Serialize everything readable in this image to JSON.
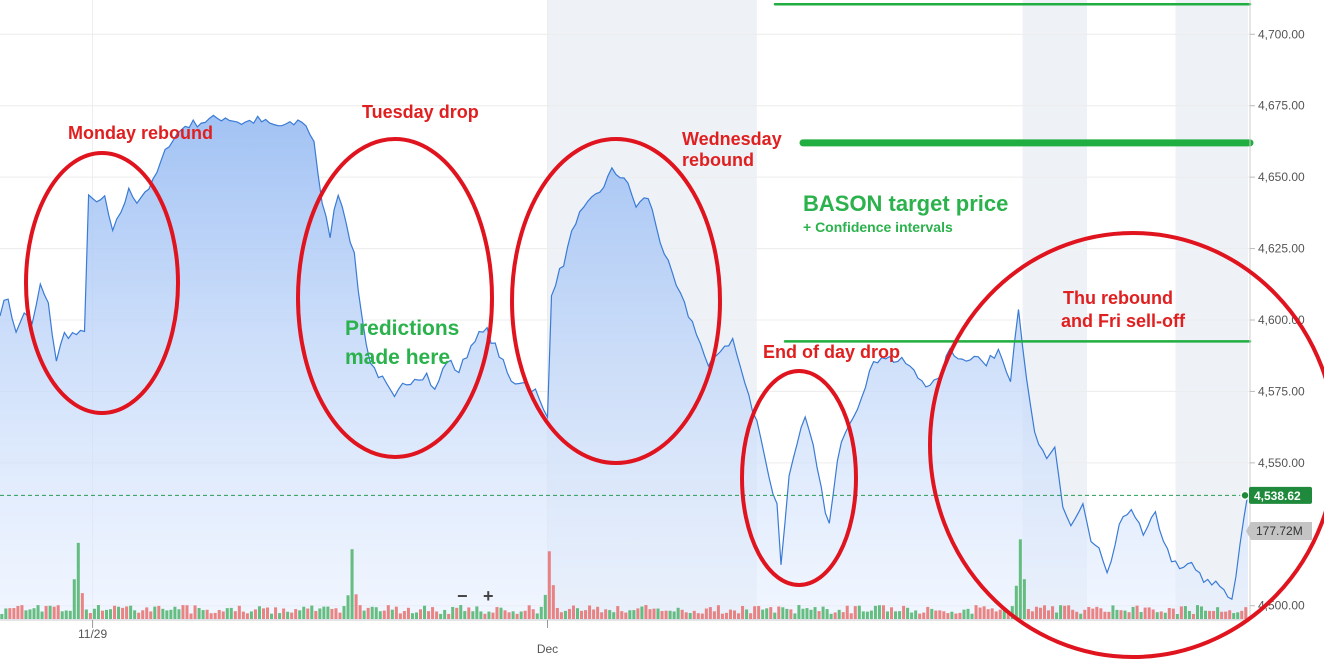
{
  "chart_data": {
    "type": "area",
    "y_ticks": [
      "4,700.00",
      "4,675.00",
      "4,650.00",
      "4,625.00",
      "4,600.00",
      "4,575.00",
      "4,550.00",
      "4,500.00"
    ],
    "y_tick_values": [
      4700,
      4675,
      4650,
      4625,
      4600,
      4575,
      4550,
      4500
    ],
    "ylim": [
      4495,
      4712
    ],
    "x_labels": [
      "11/29",
      "Dec"
    ],
    "x_label_index": [
      23,
      136
    ],
    "n_points": 310,
    "price_anchors": [
      [
        0,
        4603
      ],
      [
        2,
        4608
      ],
      [
        4,
        4595
      ],
      [
        6,
        4603
      ],
      [
        8,
        4598
      ],
      [
        10,
        4612
      ],
      [
        12,
        4605
      ],
      [
        14,
        4586
      ],
      [
        16,
        4595
      ],
      [
        19,
        4595
      ],
      [
        21,
        4595
      ],
      [
        22,
        4645
      ],
      [
        24,
        4640
      ],
      [
        26,
        4643
      ],
      [
        28,
        4630
      ],
      [
        30,
        4638
      ],
      [
        32,
        4645
      ],
      [
        34,
        4642
      ],
      [
        38,
        4648
      ],
      [
        42,
        4662
      ],
      [
        46,
        4668
      ],
      [
        52,
        4670
      ],
      [
        56,
        4671
      ],
      [
        60,
        4669
      ],
      [
        64,
        4670
      ],
      [
        68,
        4668
      ],
      [
        72,
        4668
      ],
      [
        75,
        4670
      ],
      [
        78,
        4663
      ],
      [
        80,
        4640
      ],
      [
        82,
        4630
      ],
      [
        84,
        4645
      ],
      [
        86,
        4635
      ],
      [
        88,
        4622
      ],
      [
        90,
        4600
      ],
      [
        92,
        4585
      ],
      [
        95,
        4579
      ],
      [
        98,
        4572
      ],
      [
        100,
        4577
      ],
      [
        103,
        4580
      ],
      [
        106,
        4581
      ],
      [
        108,
        4575
      ],
      [
        111,
        4586
      ],
      [
        114,
        4582
      ],
      [
        118,
        4594
      ],
      [
        121,
        4596
      ],
      [
        124,
        4588
      ],
      [
        127,
        4578
      ],
      [
        130,
        4579
      ],
      [
        133,
        4575
      ],
      [
        135,
        4568
      ],
      [
        136,
        4566
      ],
      [
        137,
        4610
      ],
      [
        140,
        4620
      ],
      [
        143,
        4635
      ],
      [
        146,
        4640
      ],
      [
        149,
        4645
      ],
      [
        152,
        4652
      ],
      [
        155,
        4650
      ],
      [
        158,
        4640
      ],
      [
        161,
        4643
      ],
      [
        164,
        4628
      ],
      [
        167,
        4615
      ],
      [
        170,
        4605
      ],
      [
        173,
        4596
      ],
      [
        176,
        4583
      ],
      [
        179,
        4590
      ],
      [
        182,
        4593
      ],
      [
        185,
        4578
      ],
      [
        187,
        4568
      ],
      [
        189,
        4560
      ],
      [
        191,
        4545
      ],
      [
        193,
        4535
      ],
      [
        194,
        4515
      ],
      [
        196,
        4545
      ],
      [
        198,
        4558
      ],
      [
        200,
        4565
      ],
      [
        202,
        4555
      ],
      [
        204,
        4540
      ],
      [
        206,
        4528
      ],
      [
        208,
        4550
      ],
      [
        210,
        4562
      ],
      [
        213,
        4570
      ],
      [
        216,
        4582
      ],
      [
        219,
        4588
      ],
      [
        222,
        4586
      ],
      [
        225,
        4585
      ],
      [
        228,
        4580
      ],
      [
        230,
        4578
      ],
      [
        233,
        4578
      ],
      [
        236,
        4590
      ],
      [
        239,
        4586
      ],
      [
        242,
        4588
      ],
      [
        245,
        4584
      ],
      [
        248,
        4590
      ],
      [
        251,
        4580
      ],
      [
        253,
        4605
      ],
      [
        255,
        4578
      ],
      [
        257,
        4560
      ],
      [
        260,
        4550
      ],
      [
        262,
        4555
      ],
      [
        264,
        4535
      ],
      [
        266,
        4528
      ],
      [
        269,
        4535
      ],
      [
        271,
        4522
      ],
      [
        273,
        4519
      ],
      [
        275,
        4510
      ],
      [
        278,
        4527
      ],
      [
        281,
        4535
      ],
      [
        284,
        4524
      ],
      [
        287,
        4532
      ],
      [
        290,
        4519
      ],
      [
        293,
        4512
      ],
      [
        296,
        4515
      ],
      [
        299,
        4508
      ],
      [
        302,
        4508
      ],
      [
        304,
        4506
      ],
      [
        306,
        4502
      ],
      [
        308,
        4520
      ],
      [
        310,
        4540
      ]
    ],
    "last_price": "4,538.62",
    "last_price_value": 4538.62,
    "volume_label": "177.72M",
    "volume_spike_index": [
      19,
      87,
      136,
      253
    ],
    "target_lines": [
      {
        "value": 4710.5,
        "style": "thin"
      },
      {
        "value": 4662,
        "style": "thick"
      },
      {
        "value": 4592.5,
        "style": "thin"
      }
    ],
    "shaded_sessions": [
      [
        136,
        188
      ],
      [
        254,
        270
      ],
      [
        292,
        310
      ]
    ]
  },
  "annotations": {
    "monday": "Monday rebound",
    "tuesday": "Tuesday drop",
    "wednesday_line1": "Wednesday",
    "wednesday_line2": "rebound",
    "end_of_day": "End of day drop",
    "thu_line1": "Thu rebound",
    "thu_line2": "and Fri sell-off",
    "predictions_line1": "Predictions",
    "predictions_line2": "made here",
    "bason_title": "BASON target price",
    "bason_sub": "+ Confidence intervals"
  },
  "zoom": {
    "minus": "−",
    "plus": "+"
  },
  "colors": {
    "line": "#3a7bd5",
    "fill_top": "#a9c8f5",
    "annotation_red": "#e02020",
    "annotation_green": "#2bb24c",
    "price_badge": "#1f8a3b",
    "volume_badge": "#b9b9b9"
  }
}
